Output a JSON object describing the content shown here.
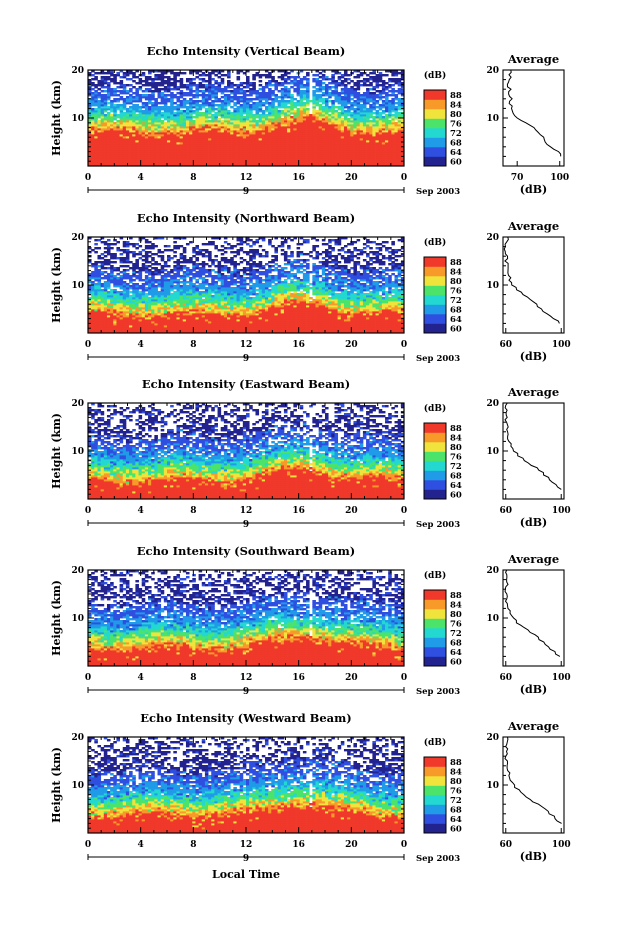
{
  "figure": {
    "bottom_xlabel": "Local Time",
    "date_label": "Sep 2003",
    "day_label": "9"
  },
  "chart_data": [
    {
      "type": "heatmap",
      "title": "Echo Intensity (Vertical Beam)",
      "ylabel": "Height (km)",
      "x_ticks": [
        "0",
        "4",
        "8",
        "12",
        "16",
        "20",
        "0"
      ],
      "xlim_hours": [
        0,
        24
      ],
      "y_ticks": [
        "10",
        "20"
      ],
      "ylim_km": [
        0,
        20
      ],
      "colorbar": {
        "unit": "(dB)",
        "levels": [
          60,
          64,
          68,
          72,
          76,
          80,
          84,
          88
        ],
        "level_labels": [
          "60",
          "64",
          "68",
          "72",
          "76",
          "80",
          "84",
          "88"
        ]
      },
      "profile": {
        "title": "Average",
        "xlabel": "(dB)",
        "x_ticks": [
          "70",
          "100"
        ],
        "xlim": [
          60,
          103
        ],
        "y_ticks": [
          "10",
          "20"
        ],
        "height_km": [
          2,
          3,
          4,
          5,
          6,
          7,
          8,
          9,
          10,
          11,
          12,
          13,
          14,
          15,
          16,
          17,
          18,
          19,
          20
        ],
        "db": [
          101,
          99,
          93,
          90,
          88,
          85,
          82,
          76,
          70,
          67,
          66,
          65,
          66,
          64,
          65,
          63,
          64,
          65,
          66
        ]
      }
    },
    {
      "type": "heatmap",
      "title": "Echo Intensity (Northward Beam)",
      "ylabel": "Height (km)",
      "x_ticks": [
        "0",
        "4",
        "8",
        "12",
        "16",
        "20",
        "0"
      ],
      "xlim_hours": [
        0,
        24
      ],
      "y_ticks": [
        "10",
        "20"
      ],
      "ylim_km": [
        0,
        20
      ],
      "colorbar": {
        "unit": "(dB)",
        "levels": [
          60,
          64,
          68,
          72,
          76,
          80,
          84,
          88
        ],
        "level_labels": [
          "60",
          "64",
          "68",
          "72",
          "76",
          "80",
          "84",
          "88"
        ]
      },
      "profile": {
        "title": "Average",
        "xlabel": "(dB)",
        "x_ticks": [
          "60",
          "100"
        ],
        "xlim": [
          58,
          102
        ],
        "y_ticks": [
          "10",
          "20"
        ],
        "height_km": [
          2,
          3,
          4,
          5,
          6,
          7,
          8,
          9,
          10,
          11,
          12,
          13,
          14,
          15,
          16,
          17,
          18,
          19,
          20
        ],
        "db": [
          99,
          95,
          90,
          86,
          82,
          77,
          73,
          68,
          65,
          63,
          62,
          61,
          61,
          60,
          61,
          60,
          60,
          61,
          61
        ]
      }
    },
    {
      "type": "heatmap",
      "title": "Echo Intensity (Eastward Beam)",
      "ylabel": "Height (km)",
      "x_ticks": [
        "0",
        "4",
        "8",
        "12",
        "16",
        "20",
        "0"
      ],
      "xlim_hours": [
        0,
        24
      ],
      "y_ticks": [
        "10",
        "20"
      ],
      "ylim_km": [
        0,
        20
      ],
      "colorbar": {
        "unit": "(dB)",
        "levels": [
          60,
          64,
          68,
          72,
          76,
          80,
          84,
          88
        ],
        "level_labels": [
          "60",
          "64",
          "68",
          "72",
          "76",
          "80",
          "84",
          "88"
        ]
      },
      "profile": {
        "title": "Average",
        "xlabel": "(dB)",
        "x_ticks": [
          "60",
          "100"
        ],
        "xlim": [
          58,
          102
        ],
        "y_ticks": [
          "10",
          "20"
        ],
        "height_km": [
          2,
          3,
          4,
          5,
          6,
          7,
          8,
          9,
          10,
          11,
          12,
          13,
          14,
          15,
          16,
          17,
          18,
          19,
          20
        ],
        "db": [
          100,
          96,
          92,
          88,
          84,
          79,
          74,
          69,
          66,
          64,
          63,
          62,
          61,
          61,
          60,
          61,
          60,
          60,
          61
        ]
      }
    },
    {
      "type": "heatmap",
      "title": "Echo Intensity (Southward Beam)",
      "ylabel": "Height (km)",
      "x_ticks": [
        "0",
        "4",
        "8",
        "12",
        "16",
        "20",
        "0"
      ],
      "xlim_hours": [
        0,
        24
      ],
      "y_ticks": [
        "10",
        "20"
      ],
      "ylim_km": [
        0,
        20
      ],
      "colorbar": {
        "unit": "(dB)",
        "levels": [
          60,
          64,
          68,
          72,
          76,
          80,
          84,
          88
        ],
        "level_labels": [
          "60",
          "64",
          "68",
          "72",
          "76",
          "80",
          "84",
          "88"
        ]
      },
      "profile": {
        "title": "Average",
        "xlabel": "(dB)",
        "x_ticks": [
          "60",
          "100"
        ],
        "xlim": [
          58,
          102
        ],
        "y_ticks": [
          "10",
          "20"
        ],
        "height_km": [
          2,
          3,
          4,
          5,
          6,
          7,
          8,
          9,
          10,
          11,
          12,
          13,
          14,
          15,
          16,
          17,
          18,
          19,
          20
        ],
        "db": [
          99,
          95,
          91,
          87,
          83,
          78,
          73,
          68,
          65,
          63,
          62,
          61,
          61,
          60,
          60,
          61,
          60,
          60,
          61
        ]
      }
    },
    {
      "type": "heatmap",
      "title": "Echo Intensity (Westward Beam)",
      "ylabel": "Height (km)",
      "x_ticks": [
        "0",
        "4",
        "8",
        "12",
        "16",
        "20",
        "0"
      ],
      "xlim_hours": [
        0,
        24
      ],
      "y_ticks": [
        "10",
        "20"
      ],
      "ylim_km": [
        0,
        20
      ],
      "colorbar": {
        "unit": "(dB)",
        "levels": [
          60,
          64,
          68,
          72,
          76,
          80,
          84,
          88
        ],
        "level_labels": [
          "60",
          "64",
          "68",
          "72",
          "76",
          "80",
          "84",
          "88"
        ]
      },
      "profile": {
        "title": "Average",
        "xlabel": "(dB)",
        "x_ticks": [
          "60",
          "100"
        ],
        "xlim": [
          58,
          102
        ],
        "y_ticks": [
          "10",
          "20"
        ],
        "height_km": [
          2,
          3,
          4,
          5,
          6,
          7,
          8,
          9,
          10,
          11,
          12,
          13,
          14,
          15,
          16,
          17,
          18,
          19,
          20
        ],
        "db": [
          100,
          96,
          92,
          88,
          83,
          78,
          73,
          69,
          66,
          64,
          63,
          62,
          61,
          61,
          60,
          61,
          60,
          61,
          61
        ]
      }
    }
  ],
  "colors": {
    "scale": [
      "#23238f",
      "#2f4fe0",
      "#1f9be8",
      "#22d8d0",
      "#4ce36a",
      "#f0e43c",
      "#f89a2a",
      "#f0392b"
    ]
  }
}
